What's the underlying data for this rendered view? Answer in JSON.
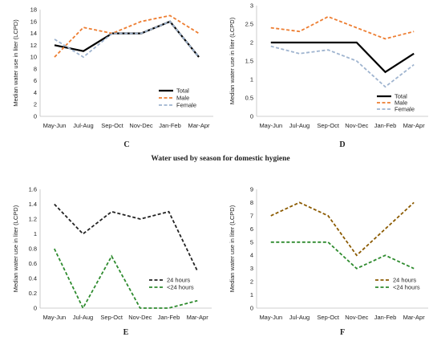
{
  "figure": {
    "center_title": "Water used by season for domestic hygiene"
  },
  "chart_data": [
    {
      "id": "C",
      "type": "line",
      "panel_label": "C",
      "ylabel": "Median water use in liter (LCPD)",
      "categories": [
        "May-Jun",
        "Jul-Aug",
        "Sep-Oct",
        "Nov-Dec",
        "Jan-Feb",
        "Mar-Apr"
      ],
      "ylim": [
        0,
        18
      ],
      "yticks": [
        "0",
        "2",
        "4",
        "6",
        "8",
        "10",
        "12",
        "14",
        "16",
        "18"
      ],
      "legend_position": "bottom-right",
      "series": [
        {
          "name": "Total",
          "values": [
            12,
            11,
            14,
            14,
            16,
            10
          ],
          "color": "#000000",
          "dash": "solid"
        },
        {
          "name": "Male",
          "values": [
            10,
            15,
            14,
            16,
            17,
            14
          ],
          "color": "#ed7d31",
          "dash": "dashed"
        },
        {
          "name": "Female",
          "values": [
            13,
            10,
            14,
            14,
            16,
            10
          ],
          "color": "#9fb4cf",
          "dash": "dashed"
        }
      ]
    },
    {
      "id": "D",
      "type": "line",
      "panel_label": "D",
      "ylabel": "Median water use in liter (LCPD)",
      "categories": [
        "May-Jun",
        "Jul-Aug",
        "Sep-Oct",
        "Nov-Dec",
        "Jan-Feb",
        "Mar-Apr"
      ],
      "ylim": [
        0,
        3
      ],
      "yticks": [
        "0",
        "0.5",
        "1",
        "1.5",
        "2",
        "2.5",
        "3"
      ],
      "legend_position": "bottom-right",
      "series": [
        {
          "name": "Total",
          "values": [
            2.0,
            2.0,
            2.0,
            2.0,
            1.2,
            1.7
          ],
          "color": "#000000",
          "dash": "solid"
        },
        {
          "name": "Male",
          "values": [
            2.4,
            2.3,
            2.7,
            2.4,
            2.1,
            2.3
          ],
          "color": "#ed7d31",
          "dash": "dashed"
        },
        {
          "name": "Female",
          "values": [
            1.9,
            1.7,
            1.8,
            1.5,
            0.8,
            1.4
          ],
          "color": "#9fb4cf",
          "dash": "dashed"
        }
      ]
    },
    {
      "id": "E",
      "type": "line",
      "panel_label": "E",
      "ylabel": "Median water use in liter (LCPD)",
      "categories": [
        "May-Jun",
        "Jul-Aug",
        "Sep-Oct",
        "Nov-Dec",
        "Jan-Feb",
        "Mar-Apr"
      ],
      "ylim": [
        0,
        1.6
      ],
      "yticks": [
        "0",
        "0.2",
        "0.4",
        "0.6",
        "0.8",
        "1",
        "1.2",
        "1.4",
        "1.6"
      ],
      "legend_position": "bottom-right",
      "series": [
        {
          "name": "24 hours",
          "values": [
            1.4,
            1.0,
            1.3,
            1.2,
            1.3,
            0.5
          ],
          "color": "#222222",
          "dash": "dashed"
        },
        {
          "name": "<24 hours",
          "values": [
            0.8,
            0.0,
            0.7,
            0.0,
            0.0,
            0.1
          ],
          "color": "#2e8b2e",
          "dash": "dashed"
        }
      ]
    },
    {
      "id": "F",
      "type": "line",
      "panel_label": "F",
      "ylabel": "Median water use in liter (LCPD)",
      "categories": [
        "May-Jun",
        "Jul-Aug",
        "Sep-Oct",
        "Nov-Dec",
        "Jan-Feb",
        "Mar-Apr"
      ],
      "ylim": [
        0,
        9
      ],
      "yticks": [
        "0",
        "1",
        "2",
        "3",
        "4",
        "5",
        "6",
        "7",
        "8",
        "9"
      ],
      "legend_position": "bottom-right",
      "series": [
        {
          "name": "24 hours",
          "values": [
            7,
            8,
            7,
            4,
            6,
            8
          ],
          "color": "#8b5a00",
          "dash": "dashed"
        },
        {
          "name": "<24 hours",
          "values": [
            5,
            5,
            5,
            3,
            4,
            3
          ],
          "color": "#2e8b2e",
          "dash": "dashed"
        }
      ]
    }
  ]
}
